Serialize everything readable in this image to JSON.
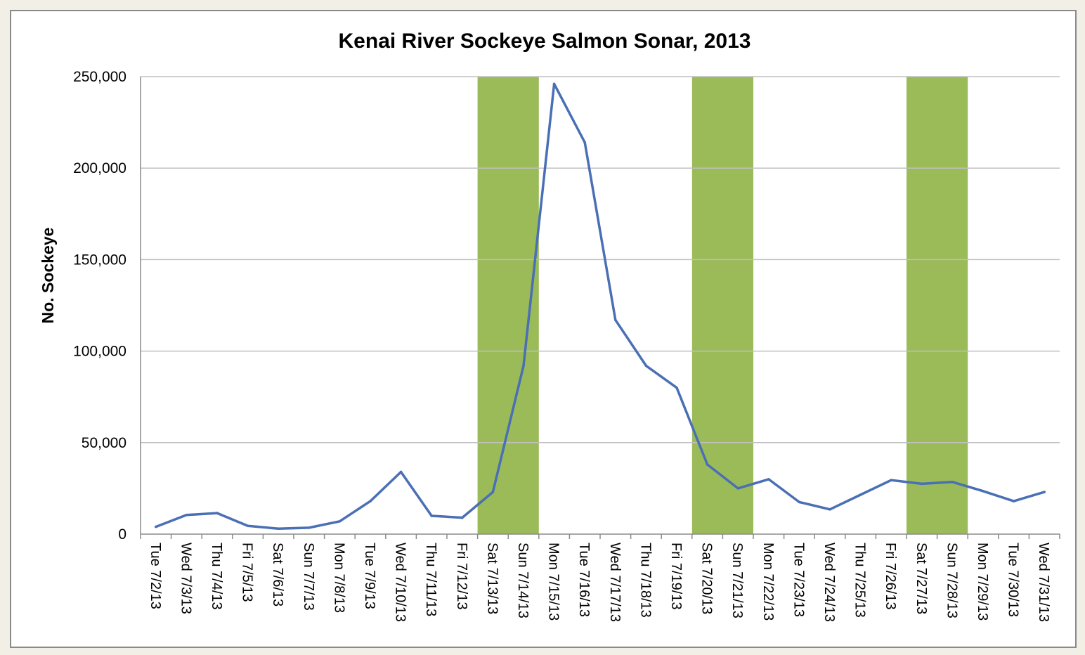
{
  "chart_data": {
    "type": "line",
    "title": "Kenai River Sockeye Salmon Sonar, 2013",
    "ylabel": "No. Sockeye",
    "xlabel": "",
    "ylim": [
      0,
      250000
    ],
    "yticks": [
      0,
      50000,
      100000,
      150000,
      200000,
      250000
    ],
    "ytick_labels": [
      "0",
      "50,000",
      "100,000",
      "150,000",
      "200,000",
      "250,000"
    ],
    "grid": true,
    "categories": [
      "Tue 7/2/13",
      "Wed 7/3/13",
      "Thu 7/4/13",
      "Fri 7/5/13",
      "Sat 7/6/13",
      "Sun 7/7/13",
      "Mon 7/8/13",
      "Tue 7/9/13",
      "Wed 7/10/13",
      "Thu 7/11/13",
      "Fri 7/12/13",
      "Sat 7/13/13",
      "Sun 7/14/13",
      "Mon 7/15/13",
      "Tue 7/16/13",
      "Wed 7/17/13",
      "Thu 7/18/13",
      "Fri 7/19/13",
      "Sat 7/20/13",
      "Sun 7/21/13",
      "Mon 7/22/13",
      "Tue 7/23/13",
      "Wed 7/24/13",
      "Thu 7/25/13",
      "Fri 7/26/13",
      "Sat 7/27/13",
      "Sun 7/28/13",
      "Mon 7/29/13",
      "Tue 7/30/13",
      "Wed 7/31/13"
    ],
    "series": [
      {
        "values": [
          4000,
          10500,
          11500,
          4500,
          3000,
          3500,
          7000,
          18000,
          34000,
          10000,
          9000,
          23000,
          92000,
          246000,
          214000,
          117000,
          92000,
          80000,
          38000,
          25000,
          30000,
          17500,
          13500,
          21500,
          29500,
          27500,
          28500,
          23500,
          18000,
          23000
        ],
        "color": "#4a6fb5"
      }
    ],
    "shaded_categories": [
      [
        "Sat 7/13/13",
        "Sun 7/14/13"
      ],
      [
        "Sat 7/20/13",
        "Sun 7/21/13"
      ],
      [
        "Sat 7/27/13",
        "Sun 7/28/13"
      ]
    ],
    "shade_color": "#9bbb59",
    "grid_color": "#bfbfbf"
  }
}
